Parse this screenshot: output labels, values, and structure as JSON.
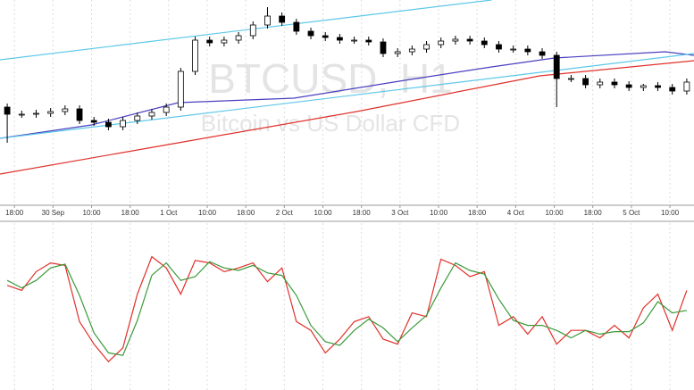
{
  "chart_data": [
    {
      "type": "candlestick",
      "title": "BTCUSD, H1",
      "subtitle": "Bitcoin vs US Dollar CFD",
      "x": [
        1.5,
        4.5,
        7.5,
        10.5,
        13.5,
        16.5,
        19.5,
        22.5,
        25.5,
        28.5,
        31.5,
        34.5,
        37.5,
        40.5,
        43.5,
        46.5,
        49.5,
        52.5,
        55.5,
        58.5,
        61.5,
        64.5,
        67.5,
        70.5,
        73.5,
        76.5,
        79.5,
        82.5,
        85.5,
        88.5,
        91.5,
        94.5,
        97.5,
        100.5,
        103.5,
        106.5,
        109.5,
        112.5,
        115.5,
        118.5,
        121.5,
        124.5,
        127.5,
        130.5,
        133.5,
        136.5,
        139.5,
        142.5
      ],
      "open": [
        110,
        102,
        102,
        103,
        105,
        108,
        95,
        93,
        88,
        95,
        100,
        104,
        110,
        150,
        185,
        182,
        185,
        190,
        202,
        212,
        205,
        195,
        190,
        188,
        185,
        185,
        183,
        170,
        172,
        175,
        180,
        184,
        186,
        184,
        180,
        175,
        175,
        172,
        168,
        142,
        142,
        135,
        138,
        135,
        132,
        134,
        132,
        128
      ],
      "high": [
        114,
        106,
        107,
        109,
        112,
        112,
        99,
        97,
        99,
        104,
        108,
        114,
        154,
        189,
        189,
        189,
        194,
        206,
        222,
        216,
        209,
        199,
        194,
        192,
        189,
        189,
        187,
        176,
        179,
        184,
        188,
        190,
        190,
        188,
        184,
        179,
        179,
        176,
        172,
        146,
        146,
        142,
        142,
        139,
        136,
        138,
        136,
        142
      ],
      "low": [
        70,
        98,
        98,
        99,
        101,
        91,
        89,
        84,
        84,
        91,
        96,
        100,
        106,
        146,
        178,
        178,
        181,
        186,
        198,
        201,
        191,
        186,
        184,
        181,
        181,
        179,
        166,
        166,
        168,
        171,
        176,
        180,
        180,
        176,
        171,
        171,
        168,
        164,
        110,
        138,
        131,
        131,
        131,
        128,
        128,
        128,
        124,
        124
      ],
      "close": [
        102,
        102,
        103,
        105,
        108,
        95,
        93,
        88,
        95,
        100,
        104,
        110,
        150,
        185,
        182,
        185,
        190,
        202,
        212,
        205,
        195,
        190,
        188,
        185,
        185,
        183,
        170,
        172,
        175,
        180,
        184,
        186,
        184,
        180,
        175,
        175,
        172,
        168,
        142,
        142,
        135,
        138,
        135,
        132,
        134,
        132,
        128,
        138
      ],
      "up_color": "#ffffff",
      "down_color": "#000000",
      "xlim": [
        0,
        144
      ],
      "xticks": [
        {
          "value": 3,
          "label": "18:00"
        },
        {
          "value": 11,
          "label": "30 Sep"
        },
        {
          "value": 19,
          "label": "10:00"
        },
        {
          "value": 27,
          "label": "18:00"
        },
        {
          "value": 35,
          "label": "1 Oct"
        },
        {
          "value": 43,
          "label": "10:00"
        },
        {
          "value": 51,
          "label": "18:00"
        },
        {
          "value": 59,
          "label": "2 Oct"
        },
        {
          "value": 67,
          "label": "10:00"
        },
        {
          "value": 75,
          "label": "18:00"
        },
        {
          "value": 83,
          "label": "3 Oct"
        },
        {
          "value": 91,
          "label": "10:00"
        },
        {
          "value": 99,
          "label": "18:00"
        },
        {
          "value": 107,
          "label": "4 Oct"
        },
        {
          "value": 115,
          "label": "10:00"
        },
        {
          "value": 123,
          "label": "18:00"
        },
        {
          "value": 131,
          "label": "5 Oct"
        },
        {
          "value": 139,
          "label": "10:00"
        }
      ],
      "ylim": [
        0,
        230
      ],
      "grid": true,
      "lines": [
        {
          "color": "#e0302a",
          "x": [
            0,
            37,
            74,
            112,
            144
          ],
          "values": [
            35,
            70,
            105,
            145,
            162
          ]
        },
        {
          "color": "#4a3fc0",
          "x": [
            0,
            19,
            37,
            61,
            84,
            102,
            115,
            138,
            144
          ],
          "values": [
            75,
            90,
            115,
            120,
            140,
            155,
            165,
            172,
            168
          ]
        },
        {
          "color": "#5cc8e8",
          "x": [
            0,
            102
          ],
          "values": [
            163,
            230
          ]
        },
        {
          "color": "#5cc8e8",
          "x": [
            0,
            144
          ],
          "values": [
            75,
            170
          ]
        }
      ]
    },
    {
      "type": "line",
      "x": [
        1.5,
        4.5,
        7.5,
        10.5,
        13.5,
        16.5,
        19.5,
        22.5,
        25.5,
        28.5,
        31.5,
        34.5,
        37.5,
        40.5,
        43.5,
        46.5,
        49.5,
        52.5,
        55.5,
        58.5,
        61.5,
        64.5,
        67.5,
        70.5,
        73.5,
        76.5,
        79.5,
        82.5,
        85.5,
        88.5,
        91.5,
        94.5,
        97.5,
        100.5,
        103.5,
        106.5,
        109.5,
        112.5,
        115.5,
        118.5,
        121.5,
        124.5,
        127.5,
        130.5,
        133.5,
        136.5,
        139.5,
        142.5
      ],
      "xlim": [
        0,
        144
      ],
      "ylim": [
        0,
        100
      ],
      "grid": true,
      "series": [
        {
          "color": "#e0302a",
          "values": [
            68,
            64,
            79,
            86,
            84,
            39,
            21,
            7,
            18,
            61,
            91,
            82,
            61,
            88,
            86,
            79,
            82,
            86,
            71,
            82,
            39,
            32,
            14,
            25,
            39,
            43,
            25,
            21,
            46,
            43,
            89,
            84,
            75,
            79,
            36,
            43,
            29,
            43,
            21,
            32,
            32,
            26,
            36,
            26,
            50,
            61,
            32,
            64
          ]
        },
        {
          "color": "#3a9a3a",
          "values": [
            72,
            66,
            72,
            82,
            85,
            60,
            30,
            14,
            12,
            40,
            76,
            86,
            72,
            75,
            87,
            82,
            80,
            84,
            78,
            76,
            60,
            36,
            23,
            20,
            32,
            41,
            34,
            23,
            34,
            44,
            66,
            86,
            80,
            77,
            57,
            40,
            36,
            36,
            32,
            26,
            32,
            29,
            31,
            31,
            38,
            55,
            46,
            48
          ]
        }
      ]
    }
  ]
}
